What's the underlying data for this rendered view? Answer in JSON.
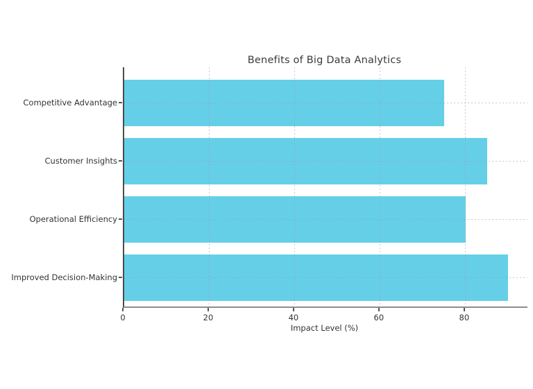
{
  "chart_data": {
    "type": "bar",
    "orientation": "horizontal",
    "title": "Benefits of Big Data Analytics",
    "xlabel": "Impact Level (%)",
    "ylabel": "",
    "categories": [
      "Competitive Advantage",
      "Customer Insights",
      "Operational Efficiency",
      "Improved Decision-Making"
    ],
    "values": [
      75,
      85,
      80,
      90
    ],
    "xticks": [
      0,
      20,
      40,
      60,
      80
    ],
    "xlim": [
      0,
      94.5
    ],
    "bar_color": "#66CFE8",
    "grid": "dotted, light gray, horizontal at each category and vertical at each x tick",
    "legend": "none",
    "background_color": "#ffffff"
  }
}
